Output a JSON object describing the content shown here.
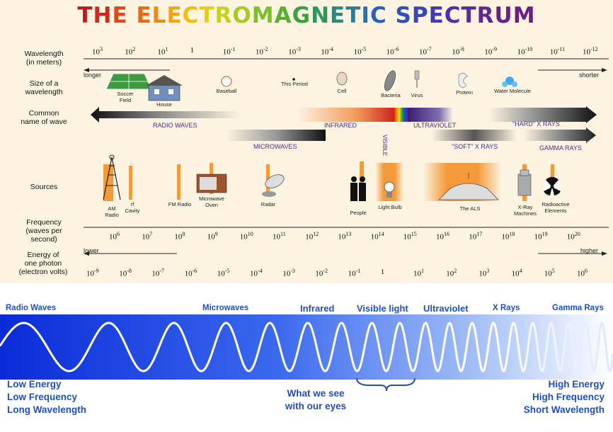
{
  "title_letters": [
    {
      "ch": "T",
      "c": "#c01c1c"
    },
    {
      "ch": "H",
      "c": "#d22a1a"
    },
    {
      "ch": "E",
      "c": "#e04618"
    },
    {
      "ch": " ",
      "c": "#000"
    },
    {
      "ch": "E",
      "c": "#e86a12"
    },
    {
      "ch": "L",
      "c": "#ee8a10"
    },
    {
      "ch": "E",
      "c": "#f2a60e"
    },
    {
      "ch": "C",
      "c": "#f0bf0c"
    },
    {
      "ch": "T",
      "c": "#e4cf10"
    },
    {
      "ch": "R",
      "c": "#c9d21a"
    },
    {
      "ch": "O",
      "c": "#a4cc22"
    },
    {
      "ch": "M",
      "c": "#7cc02a"
    },
    {
      "ch": "A",
      "c": "#56b032"
    },
    {
      "ch": "G",
      "c": "#3aa040"
    },
    {
      "ch": "N",
      "c": "#2c9660"
    },
    {
      "ch": "E",
      "c": "#288a7e"
    },
    {
      "ch": "T",
      "c": "#287e9a"
    },
    {
      "ch": "I",
      "c": "#2a70b0"
    },
    {
      "ch": "C",
      "c": "#2c60bc"
    },
    {
      "ch": " ",
      "c": "#000"
    },
    {
      "ch": "S",
      "c": "#3050c0"
    },
    {
      "ch": "P",
      "c": "#3a44bc"
    },
    {
      "ch": "E",
      "c": "#4438b4"
    },
    {
      "ch": "C",
      "c": "#4e30aa"
    },
    {
      "ch": "T",
      "c": "#582aa0"
    },
    {
      "ch": "R",
      "c": "#602694"
    },
    {
      "ch": "U",
      "c": "#66228a"
    },
    {
      "ch": "M",
      "c": "#6a2080"
    }
  ],
  "row_labels": {
    "wavelength": "Wavelength\n(in meters)",
    "size": "Size of a\nwavelength",
    "common": "Common\nname of wave",
    "sources": "Sources",
    "frequency": "Frequency\n(waves per\nsecond)",
    "energy": "Energy of\none photon\n(electron volts)"
  },
  "wavelength_ticks": [
    {
      "base": "10",
      "exp": "3"
    },
    {
      "base": "10",
      "exp": "2"
    },
    {
      "base": "10",
      "exp": "1"
    },
    {
      "base": "1",
      "exp": ""
    },
    {
      "base": "10",
      "exp": "-1"
    },
    {
      "base": "10",
      "exp": "-2"
    },
    {
      "base": "10",
      "exp": "-3"
    },
    {
      "base": "10",
      "exp": "-4"
    },
    {
      "base": "10",
      "exp": "-5"
    },
    {
      "base": "10",
      "exp": "-6"
    },
    {
      "base": "10",
      "exp": "-7"
    },
    {
      "base": "10",
      "exp": "-8"
    },
    {
      "base": "10",
      "exp": "-9"
    },
    {
      "base": "10",
      "exp": "-10"
    },
    {
      "base": "10",
      "exp": "-11"
    },
    {
      "base": "10",
      "exp": "-12"
    }
  ],
  "frequency_ticks": [
    {
      "base": "10",
      "exp": "6"
    },
    {
      "base": "10",
      "exp": "7"
    },
    {
      "base": "10",
      "exp": "8"
    },
    {
      "base": "10",
      "exp": "9"
    },
    {
      "base": "10",
      "exp": "10"
    },
    {
      "base": "10",
      "exp": "11"
    },
    {
      "base": "10",
      "exp": "12"
    },
    {
      "base": "10",
      "exp": "13"
    },
    {
      "base": "10",
      "exp": "14"
    },
    {
      "base": "10",
      "exp": "15"
    },
    {
      "base": "10",
      "exp": "16"
    },
    {
      "base": "10",
      "exp": "17"
    },
    {
      "base": "10",
      "exp": "18"
    },
    {
      "base": "10",
      "exp": "19"
    },
    {
      "base": "10",
      "exp": "20"
    }
  ],
  "energy_ticks": [
    {
      "base": "10",
      "exp": "-9"
    },
    {
      "base": "10",
      "exp": "-8"
    },
    {
      "base": "10",
      "exp": "-7"
    },
    {
      "base": "10",
      "exp": "-6"
    },
    {
      "base": "10",
      "exp": "-5"
    },
    {
      "base": "10",
      "exp": "-4"
    },
    {
      "base": "10",
      "exp": "-3"
    },
    {
      "base": "10",
      "exp": "-2"
    },
    {
      "base": "10",
      "exp": "-1"
    },
    {
      "base": "1",
      "exp": ""
    },
    {
      "base": "10",
      "exp": "1"
    },
    {
      "base": "10",
      "exp": "2"
    },
    {
      "base": "10",
      "exp": "3"
    },
    {
      "base": "10",
      "exp": "4"
    },
    {
      "base": "10",
      "exp": "5"
    },
    {
      "base": "10",
      "exp": "6"
    }
  ],
  "arrows": {
    "longer": "longer",
    "shorter": "shorter",
    "lower": "lower",
    "higher": "higher"
  },
  "size_items": {
    "soccer": "Soccer\nField",
    "house": "House",
    "baseball": "Baseball",
    "period": "This Period",
    "cell": "Cell",
    "bacteria": "Bacteria",
    "virus": "Virus",
    "protein": "Protein",
    "water": "Water Molecule"
  },
  "wave_names": {
    "radio": "RADIO WAVES",
    "infrared": "INFRARED",
    "visible": "VISIBLE",
    "ultraviolet": "ULTRAVIOLET",
    "hard_xrays": "\"HARD\" X RAYS",
    "microwaves": "MICROWAVES",
    "soft_xrays": "\"SOFT\" X RAYS",
    "gamma": "GAMMA RAYS"
  },
  "sources": {
    "am_radio": "AM\nRadio",
    "rf_cavity": "rf\nCavity",
    "fm_radio": "FM Radio",
    "microwave_oven": "Microwave\nOven",
    "radar": "Radar",
    "people": "People",
    "light_bulb": "Light Bulb",
    "als": "The ALS",
    "xray_machines": "X-Ray\nMachines",
    "radioactive": "Radioactive\nElements"
  },
  "bottom": {
    "radio": "Radio Waves",
    "microwaves": "Microwaves",
    "infrared": "Infrared",
    "visible": "Visible light",
    "ultraviolet": "Ultraviolet",
    "xrays": "X Rays",
    "gamma": "Gamma Rays",
    "left1": "Low Energy",
    "left2": "Low Frequency",
    "left3": "Long Wavelength",
    "mid1": "What we see",
    "mid2": "with our eyes",
    "right1": "High Energy",
    "right2": "High Frequency",
    "right3": "Short Wavelength"
  },
  "colors": {
    "accent_blue": "#1f4fb8",
    "wave_label": "#4b2a8c",
    "orange": "#f59a3a"
  }
}
